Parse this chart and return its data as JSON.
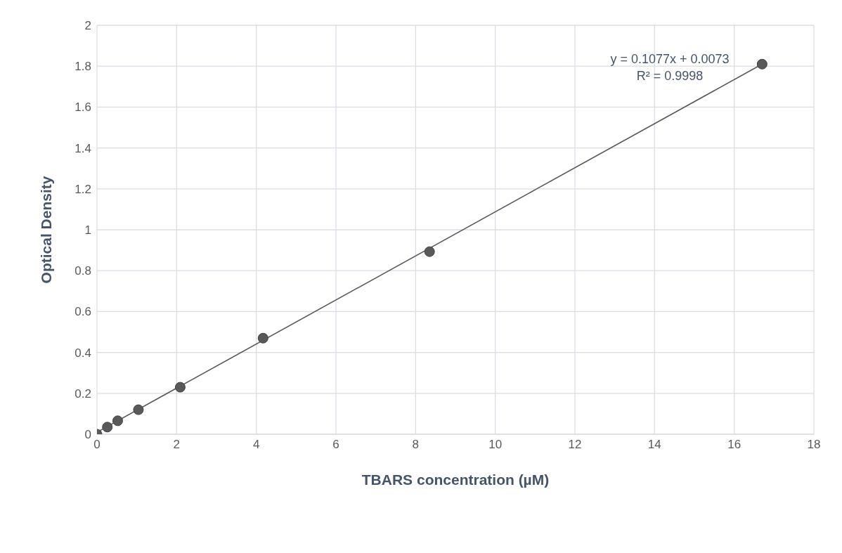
{
  "chart_data": {
    "type": "scatter",
    "xlabel": "TBARS concentration (µM)",
    "ylabel": "Optical Density",
    "x": [
      0,
      0.26,
      0.52,
      1.04,
      2.09,
      4.17,
      8.35,
      16.7
    ],
    "values": [
      0,
      0.035,
      0.066,
      0.12,
      0.23,
      0.47,
      0.893,
      1.81
    ],
    "color": "#595959",
    "marker": "circle",
    "series": [
      {
        "type": "line",
        "x": [
          0,
          16.7
        ],
        "values": [
          0.01,
          1.81
        ],
        "color": "#595959",
        "line_style": "solid",
        "marker": "none"
      }
    ],
    "annotations": [
      "y = 0.1077x + 0.0073",
      "R² = 0.9998"
    ],
    "xlim": [
      0,
      18
    ],
    "xticks": [
      0,
      2,
      4,
      6,
      8,
      10,
      12,
      14,
      16,
      18
    ],
    "ylim": [
      0,
      2
    ],
    "yticks": [
      0,
      0.2,
      0.4,
      0.6,
      0.8,
      1,
      1.2,
      1.4,
      1.6,
      1.8,
      2
    ],
    "grid": true,
    "legend": false
  }
}
